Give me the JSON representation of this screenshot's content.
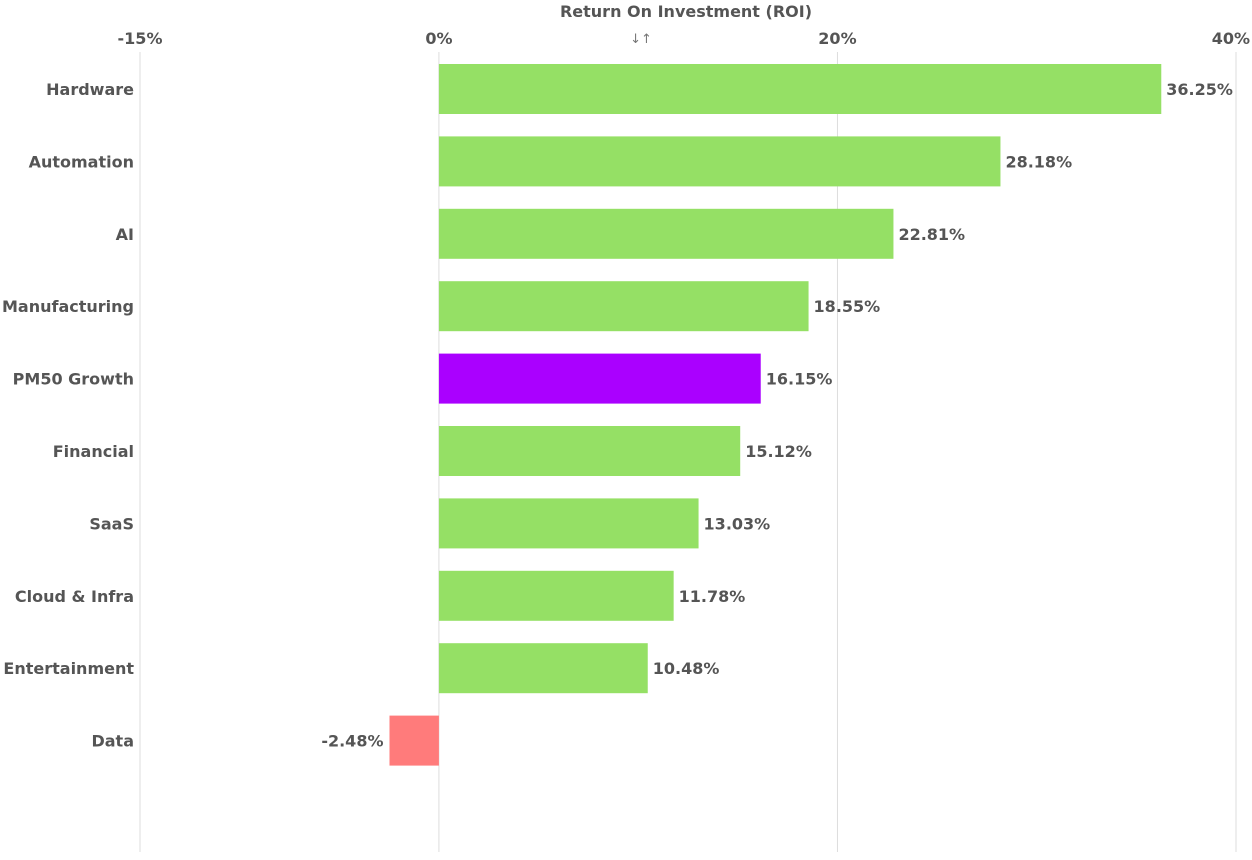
{
  "chart_data": {
    "type": "bar",
    "orientation": "horizontal",
    "title": "Return On Investment (ROI)",
    "sort_icon": "sort-icon",
    "xlabel": "Return On Investment (ROI)",
    "ylabel": "",
    "xlim": [
      -15,
      40
    ],
    "ticks": [
      {
        "value": -15,
        "label": "-15%"
      },
      {
        "value": 0,
        "label": "0%"
      },
      {
        "value": 20,
        "label": "20%"
      },
      {
        "value": 40,
        "label": "40%"
      }
    ],
    "categories": [
      "Hardware",
      "Automation",
      "AI",
      "Manufacturing",
      "PM50 Growth",
      "Financial",
      "SaaS",
      "Cloud & Infra",
      "Entertainment",
      "Data"
    ],
    "values": [
      36.25,
      28.18,
      22.81,
      18.55,
      16.15,
      15.12,
      13.03,
      11.78,
      10.48,
      -2.48
    ],
    "labels": [
      "36.25%",
      "28.18%",
      "22.81%",
      "18.55%",
      "16.15%",
      "15.12%",
      "13.03%",
      "11.78%",
      "10.48%",
      "-2.48%"
    ],
    "colors": {
      "positive": "#95e065",
      "highlight": "#aa00ff",
      "negative": "#ff7b7b"
    },
    "highlight_category": "PM50 Growth",
    "sort_glyph": "↓↑"
  }
}
